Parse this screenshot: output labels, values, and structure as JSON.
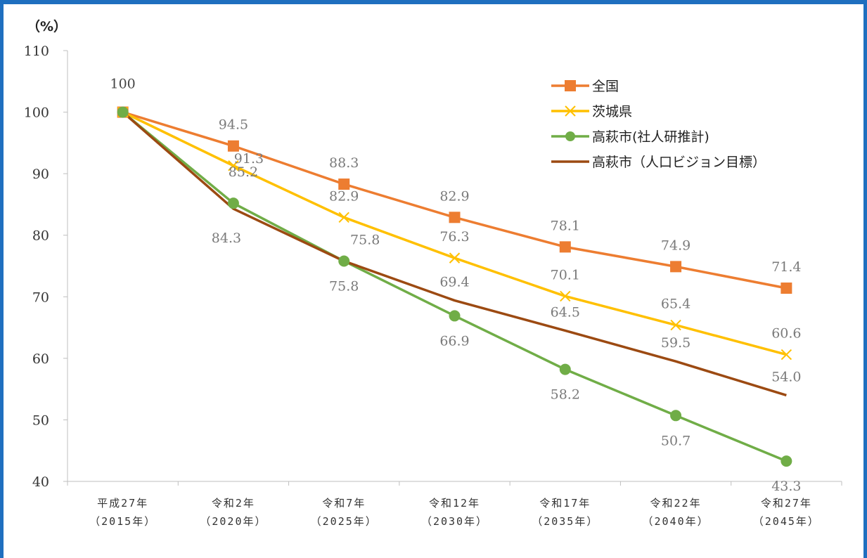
{
  "chart_data": {
    "type": "line",
    "unit_label": "（%）",
    "ylim": [
      40,
      110
    ],
    "yticks": [
      40,
      50,
      60,
      70,
      80,
      90,
      100,
      110
    ],
    "categories": [
      [
        "平成27年",
        "（2015年）"
      ],
      [
        "令和2年",
        "（2020年）"
      ],
      [
        "令和7年",
        "（2025年）"
      ],
      [
        "令和12年",
        "（2030年）"
      ],
      [
        "令和17年",
        "（2035年）"
      ],
      [
        "令和22年",
        "（2040年）"
      ],
      [
        "令和27年",
        "（2045年）"
      ]
    ],
    "start_label": "100",
    "legend_position": "top-right",
    "series": [
      {
        "name": "全国",
        "color": "#ed7d31",
        "marker": "square",
        "values": [
          100,
          94.5,
          88.3,
          82.9,
          78.1,
          74.9,
          71.4
        ],
        "labels": [
          "",
          "94.5",
          "88.3",
          "82.9",
          "78.1",
          "74.9",
          "71.4"
        ]
      },
      {
        "name": "茨城県",
        "color": "#ffc000",
        "marker": "x",
        "values": [
          100,
          91.3,
          82.9,
          76.3,
          70.1,
          65.4,
          60.6
        ],
        "labels": [
          "",
          "91.3",
          "82.9",
          "76.3",
          "70.1",
          "65.4",
          "60.6"
        ]
      },
      {
        "name": "高萩市(社人研推計)",
        "color": "#70ad47",
        "marker": "circle",
        "values": [
          100,
          85.2,
          75.8,
          66.9,
          58.2,
          50.7,
          43.3
        ],
        "labels": [
          "",
          "85.2",
          "75.8",
          "66.9",
          "58.2",
          "50.7",
          "43.3"
        ]
      },
      {
        "name": "高萩市（人口ビジョン目標）",
        "color": "#9c4a12",
        "marker": "none",
        "values": [
          100,
          84.3,
          75.8,
          69.4,
          64.5,
          59.5,
          54.0
        ],
        "labels": [
          "",
          "84.3",
          "75.8",
          "69.4",
          "64.5",
          "59.5",
          "54.0"
        ]
      }
    ]
  }
}
